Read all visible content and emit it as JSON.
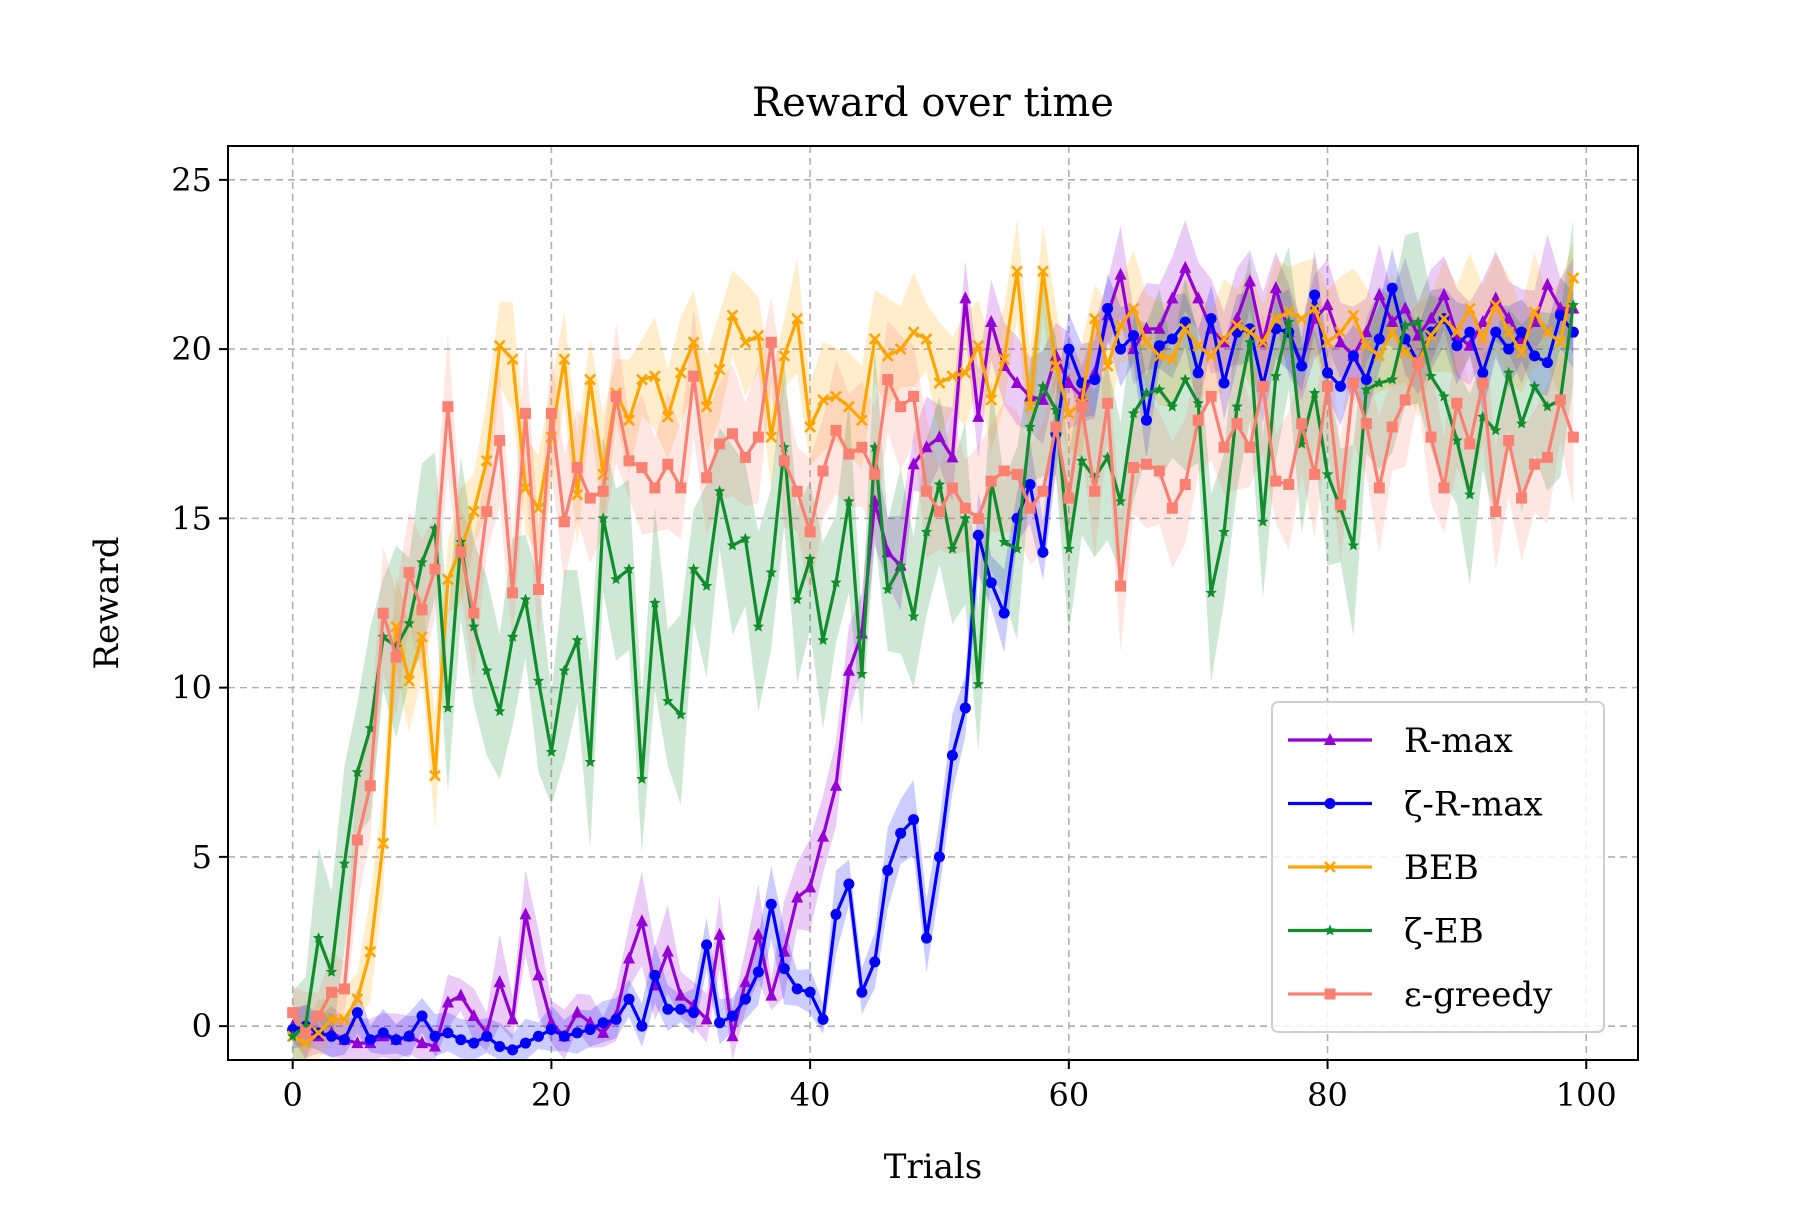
{
  "chart_data": {
    "type": "line",
    "title": "Reward over time",
    "xlabel": "Trials",
    "ylabel": "Reward",
    "xlim": [
      -5,
      104
    ],
    "ylim": [
      -1,
      26
    ],
    "xticks": [
      0,
      20,
      40,
      60,
      80,
      100
    ],
    "yticks": [
      0,
      5,
      10,
      15,
      20,
      25
    ],
    "grid": true,
    "legend_position": "lower-right",
    "series": [
      {
        "name": "R-max",
        "color": "#9400D3",
        "marker": "triangle",
        "band": 1.5,
        "values": [
          0,
          -0.2,
          -0.3,
          -0.2,
          -0.4,
          -0.5,
          -0.5,
          -0.3,
          -0.4,
          -0.3,
          -0.5,
          -0.6,
          0.7,
          0.9,
          0.3,
          -0.2,
          1.3,
          0.2,
          3.3,
          1.5,
          0.1,
          -0.3,
          0.4,
          0.1,
          -0.2,
          0.3,
          2,
          3.1,
          1.2,
          2.2,
          0.9,
          0.6,
          0.2,
          2.7,
          -0.3,
          1.3,
          2.7,
          0.9,
          2.2,
          3.8,
          4.1,
          5.6,
          7.1,
          10.5,
          11.6,
          15.5,
          14,
          13.6,
          16.6,
          17.1,
          17.4,
          16.8,
          21.5,
          18,
          20.8,
          19.5,
          19,
          18.6,
          18.5,
          19.8,
          19,
          18.6,
          19.3,
          21,
          22.2,
          20,
          20.6,
          20.6,
          21.5,
          22.4,
          21.5,
          20.6,
          20.2,
          20.9,
          22,
          20.2,
          21.8,
          20.5,
          19.6,
          20.9,
          21.3,
          20.2,
          19.8,
          20.5,
          21.6,
          20.8,
          21.2,
          20.4,
          20.9,
          21.6,
          20.4,
          20.1,
          20.8,
          21.5,
          20.9,
          20.3,
          20.8,
          21.9,
          21.2,
          21.2
        ]
      },
      {
        "name": "ζ-R-max",
        "color": "#0000FF",
        "marker": "circle",
        "band": 1.3,
        "values": [
          -0.1,
          0,
          -0.2,
          -0.3,
          -0.4,
          0.4,
          -0.4,
          -0.2,
          -0.4,
          -0.3,
          0.3,
          -0.3,
          -0.2,
          -0.4,
          -0.5,
          -0.3,
          -0.6,
          -0.7,
          -0.5,
          -0.3,
          -0.1,
          -0.3,
          -0.2,
          -0.1,
          0.1,
          0.2,
          0.8,
          0,
          1.5,
          0.5,
          0.5,
          0.4,
          2.4,
          0.1,
          0.3,
          0.8,
          1.6,
          3.6,
          1.7,
          1.1,
          1,
          0.2,
          3.3,
          4.2,
          1,
          1.9,
          4.6,
          5.7,
          6.1,
          2.6,
          5,
          8,
          9.4,
          14.5,
          13.1,
          12.2,
          15,
          16,
          14,
          17.5,
          20,
          19,
          19.1,
          21.2,
          20,
          20.4,
          17.9,
          20.1,
          20.3,
          20.8,
          19.3,
          20.9,
          19,
          20.5,
          20.6,
          18.9,
          20.6,
          20.5,
          19.5,
          21.6,
          19.3,
          18.9,
          19.8,
          19.1,
          20.3,
          21.8,
          20.3,
          19.6,
          20.5,
          20.9,
          20.1,
          20.5,
          19.3,
          20.5,
          20,
          20.5,
          19.8,
          19.6,
          21,
          20.5
        ]
      },
      {
        "name": "BEB",
        "color": "#FFA500",
        "marker": "x",
        "band": 1.8,
        "values": [
          -0.3,
          -0.5,
          -0.2,
          0.2,
          0.2,
          0.8,
          2.2,
          5.4,
          11.8,
          10.2,
          11.5,
          7.4,
          13.2,
          14.1,
          15.2,
          16.7,
          20.1,
          19.7,
          15.9,
          15.3,
          17.4,
          19.7,
          15.7,
          19.1,
          16.3,
          18.7,
          17.9,
          19.1,
          19.2,
          18,
          19.3,
          20.2,
          18.3,
          19.4,
          21,
          20.2,
          20.4,
          17.4,
          19.8,
          20.9,
          17.7,
          18.5,
          18.6,
          18.3,
          17.9,
          20.3,
          19.8,
          20,
          20.5,
          20.3,
          19,
          19.2,
          19.3,
          20.1,
          18.5,
          19.7,
          22.3,
          18.3,
          22.3,
          19.5,
          18.1,
          18.4,
          20.9,
          19.5,
          20.7,
          21.2,
          20.2,
          19.8,
          19.7,
          20.6,
          20.1,
          19.8,
          20.3,
          20.7,
          20.5,
          20.2,
          20.9,
          21.1,
          20.9,
          21.2,
          20.2,
          20.5,
          21,
          20.1,
          19.8,
          20.5,
          19.9,
          19.6,
          20.4,
          20.9,
          20.5,
          21.2,
          20.3,
          21.3,
          20.5,
          19.9,
          21.1,
          20.5,
          20.2,
          22.1
        ]
      },
      {
        "name": "ζ-EB",
        "color": "#118D2E",
        "marker": "star",
        "band": 3,
        "values": [
          -0.3,
          0,
          2.6,
          1.6,
          4.8,
          7.5,
          8.8,
          11.5,
          11.2,
          11.9,
          13.7,
          14.7,
          9.4,
          14.3,
          11.8,
          10.5,
          9.3,
          11.5,
          12.6,
          10.2,
          8.1,
          10.5,
          11.4,
          7.8,
          15,
          13.2,
          13.5,
          7.3,
          12.5,
          9.6,
          9.2,
          13.5,
          13,
          15.8,
          14.2,
          14.4,
          11.8,
          13.4,
          17.1,
          12.6,
          13.8,
          11.4,
          13.1,
          15.5,
          10.4,
          17.1,
          12.9,
          13.6,
          12.1,
          14.6,
          16,
          14.1,
          15,
          10.1,
          16.1,
          14.3,
          14.1,
          17.7,
          18.9,
          18.2,
          14.1,
          16.7,
          16.2,
          16.8,
          15.5,
          18.1,
          18.7,
          18.8,
          18.3,
          19.1,
          18.4,
          12.8,
          14.6,
          18.3,
          20.2,
          14.9,
          19.2,
          20.8,
          17.2,
          18.7,
          16.3,
          15.3,
          14.2,
          18.8,
          19,
          19.1,
          20.7,
          20.8,
          19.2,
          18.6,
          17.3,
          15.7,
          18,
          17.6,
          19.3,
          17.8,
          18.9,
          18.3,
          18.5,
          21.3
        ]
      },
      {
        "name": "ε-greedy",
        "color": "#FA8072",
        "marker": "square",
        "band": 2.2,
        "values": [
          0.4,
          -0.2,
          0.3,
          1,
          1.1,
          5.5,
          7.1,
          12.2,
          10.9,
          13.4,
          12.3,
          13.5,
          18.3,
          14,
          12.2,
          15.2,
          17.3,
          12.8,
          18.1,
          12.9,
          18.1,
          14.9,
          16.5,
          15.6,
          15.8,
          18.6,
          16.7,
          16.5,
          15.9,
          16.6,
          15.9,
          19.2,
          16.2,
          17.2,
          17.5,
          16.8,
          17.4,
          20.2,
          16.7,
          15.8,
          14.6,
          16.4,
          17.6,
          16.9,
          17.1,
          16.3,
          19.1,
          18.3,
          18.6,
          15.8,
          15.2,
          15.9,
          15.3,
          15,
          16.1,
          16.4,
          16.3,
          15.3,
          15.8,
          17.7,
          15.6,
          18.3,
          15.8,
          18.4,
          13,
          16.5,
          16.6,
          16.4,
          15.3,
          16,
          17.9,
          18.6,
          17.1,
          17.8,
          17.1,
          18.9,
          16.1,
          16,
          17.8,
          16.3,
          18.9,
          15.4,
          19,
          17.8,
          15.9,
          17.7,
          18.5,
          19.6,
          17.4,
          15.9,
          18.4,
          17.2,
          19,
          15.2,
          17.3,
          15.6,
          16.6,
          16.8,
          18.5,
          17.4
        ]
      }
    ]
  }
}
